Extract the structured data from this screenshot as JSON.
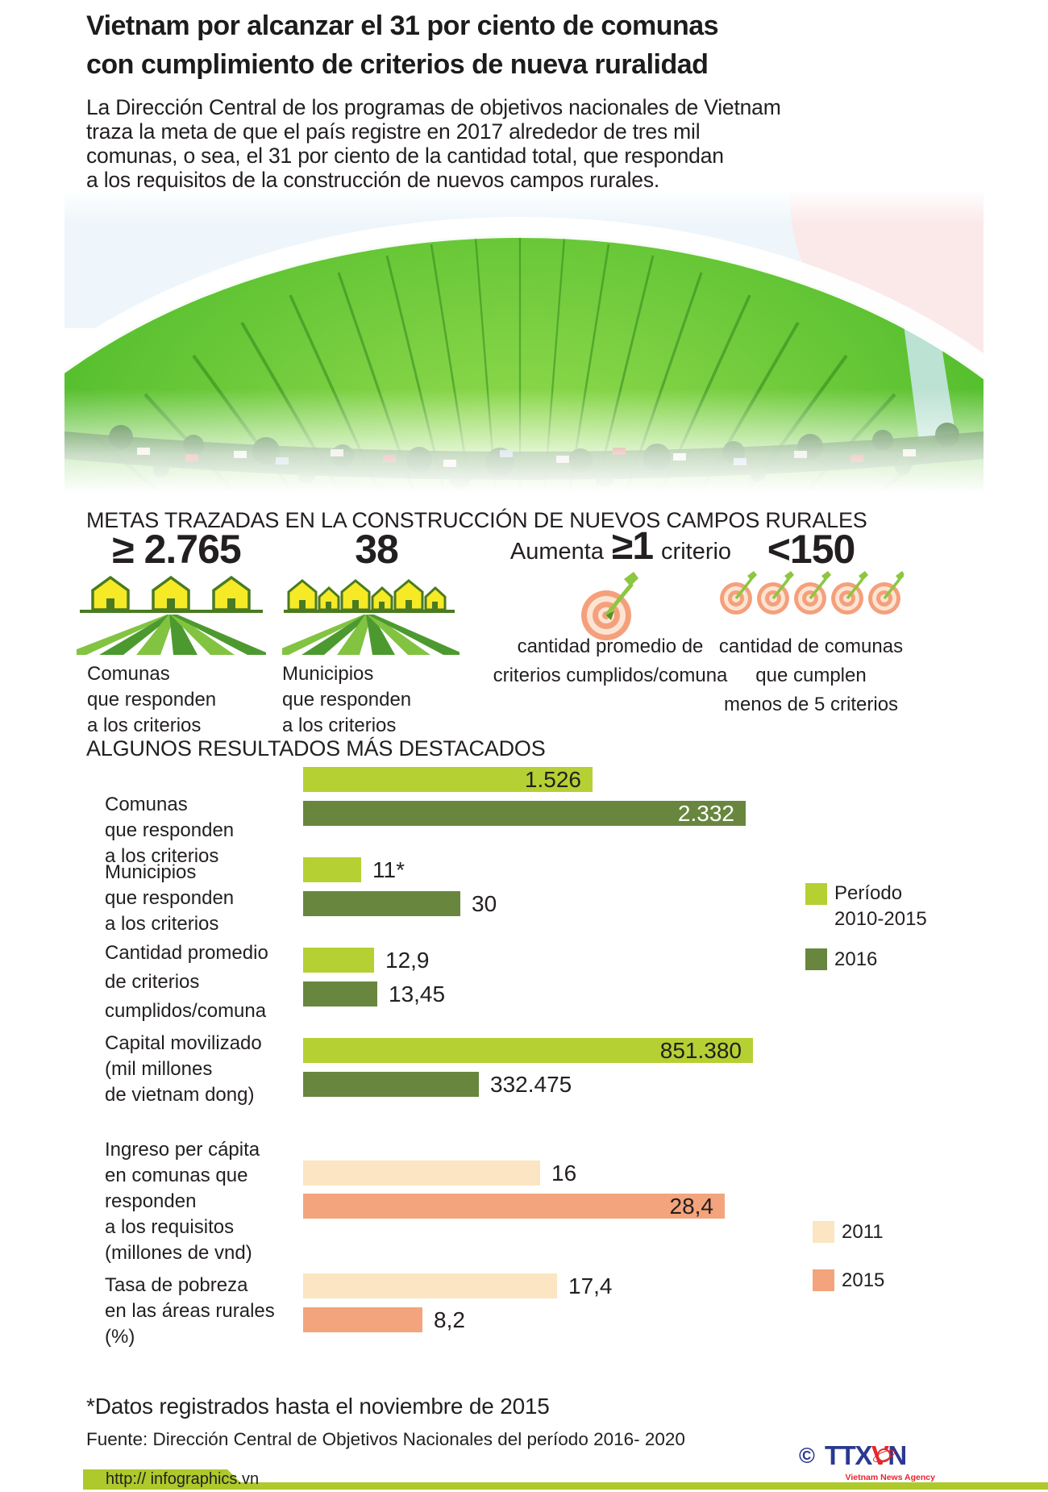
{
  "header": {
    "title_lines": [
      "Vietnam por alcanzar el 31 por ciento de comunas",
      "con cumplimiento de criterios de nueva ruralidad"
    ],
    "intro_lines": [
      "La Dirección Central de los programas de objetivos nacionales de Vietnam",
      "traza la meta de que el país registre en 2017  alrededor de tres mil",
      "comunas, o sea, el 31 por ciento de la cantidad total, que respondan",
      "a los requisitos de la construcción de nuevos campos rurales."
    ]
  },
  "metas": {
    "heading": "METAS TRAZADAS EN LA CONSTRUCCIÓN DE NUEVOS CAMPOS RURALES",
    "items": [
      {
        "value": "≥ 2.765",
        "caption_lines": [
          "Comunas",
          " que responden",
          "a los criterios"
        ]
      },
      {
        "value": "38",
        "caption_lines": [
          "Municipios",
          " que responden",
          "a los criterios"
        ]
      },
      {
        "prefix": "Aumenta",
        "value": "≥1",
        "suffix": "criterio",
        "caption_lines": [
          "cantidad promedio de",
          "criterios cumplidos/comuna"
        ]
      },
      {
        "value": "<150",
        "caption_lines": [
          "cantidad de comunas",
          "que cumplen",
          "menos de 5 criterios"
        ]
      }
    ]
  },
  "results_heading": "ALGUNOS RESULTADOS MÁS DESTACADOS",
  "chart_data": {
    "type": "bar",
    "orientation": "horizontal",
    "title": "ALGUNOS RESULTADOS MÁS DESTACADOS",
    "legend_position": "right",
    "groups": [
      {
        "category": "Comunas que responden a los criterios",
        "category_lines": [
          "Comunas",
          "que responden",
          "a los criterios"
        ],
        "bars": [
          {
            "series": "Período 2010-2015",
            "value": 1526,
            "label": "1.526",
            "inside": true,
            "text": "#231f20"
          },
          {
            "series": "2016",
            "value": 2332,
            "label": "2.332",
            "inside": true,
            "text": "#ffffff"
          }
        ]
      },
      {
        "category": "Municipios que responden a los criterios",
        "category_lines": [
          "Municipios",
          "que responden",
          "a los criterios"
        ],
        "bars": [
          {
            "series": "Período 2010-2015",
            "value": 11,
            "label": "11*",
            "inside": false
          },
          {
            "series": "2016",
            "value": 30,
            "label": "30",
            "inside": false
          }
        ]
      },
      {
        "category": "Cantidad promedio de criterios cumplidos/comuna",
        "category_lines": [
          "Cantidad promedio",
          "de criterios",
          "cumplidos/comuna"
        ],
        "bars": [
          {
            "series": "Período 2010-2015",
            "value": 12.9,
            "label": "12,9",
            "inside": false
          },
          {
            "series": "2016",
            "value": 13.45,
            "label": "13,45",
            "inside": false
          }
        ]
      },
      {
        "category": "Capital movilizado (mil millones de vietnam dong)",
        "category_lines": [
          "Capital movilizado",
          "(mil millones",
          "de vietnam dong)"
        ],
        "bars": [
          {
            "series": "Período 2010-2015",
            "value": 851380,
            "label": "851.380",
            "inside": true,
            "text": "#231f20"
          },
          {
            "series": "2016",
            "value": 332475,
            "label": "332.475",
            "inside": false
          }
        ]
      },
      {
        "category": "Ingreso per cápita en comunas que responden a los requisitos (millones de vnd)",
        "category_lines": [
          "Ingreso per cápita",
          "en comunas que",
          "responden",
          "a los requisitos",
          "(millones de vnd)"
        ],
        "bars": [
          {
            "series": "2011",
            "value": 16,
            "label": "16",
            "inside": false
          },
          {
            "series": "2015",
            "value": 28.4,
            "label": "28,4",
            "inside": true,
            "text": "#231f20"
          }
        ]
      },
      {
        "category": "Tasa de pobreza en las áreas rurales (%)",
        "category_lines": [
          "Tasa de pobreza",
          "en las áreas rurales",
          "(%)"
        ],
        "bars": [
          {
            "series": "2011",
            "value": 17.4,
            "label": "17,4",
            "inside": false
          },
          {
            "series": "2015",
            "value": 8.2,
            "label": "8,2",
            "inside": false
          }
        ]
      }
    ],
    "legend_top": [
      {
        "series": "Período 2010-2015",
        "label_lines": [
          "Período",
          "2010-2015"
        ]
      },
      {
        "series": "2016",
        "label_lines": [
          "2016"
        ]
      }
    ],
    "legend_bottom": [
      {
        "series": "2011",
        "label": "2011"
      },
      {
        "series": "2015",
        "label": "2015"
      }
    ]
  },
  "colors": {
    "series": {
      "Período 2010-2015": "#b5d033",
      "2016": "#68863e",
      "2011": "#fce5c2",
      "2015": "#f4a47c"
    },
    "footer_band": "#adc92b",
    "logo_blue": "#2b3990",
    "logo_red": "#e8262d",
    "text": "#231f20"
  },
  "footnote": "*Datos registrados hasta el noviembre de 2015",
  "source": "Fuente: Dirección Central de Objetivos Nacionales del período 2016- 2020",
  "footer": {
    "url": "http:// infographics.vn",
    "copyright": "©",
    "logo_part1": "TTX",
    "logo_part2": "V",
    "logo_part3": "N",
    "logo_sub": "Vietnam News Agency"
  }
}
